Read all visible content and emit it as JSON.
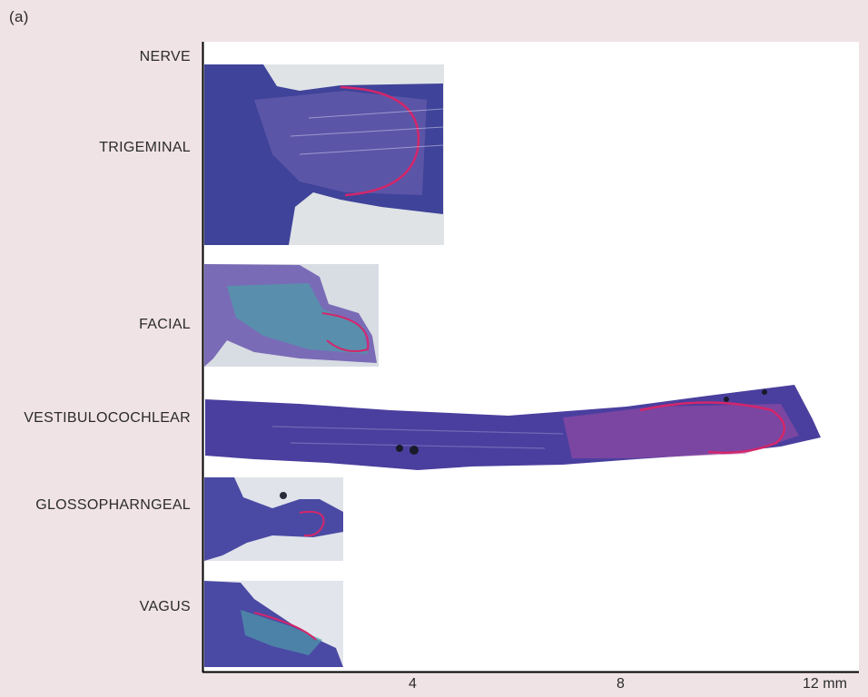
{
  "panel_label": "(a)",
  "column_header": "NERVE",
  "nerves": [
    {
      "name": "TRIGEMINAL"
    },
    {
      "name": "FACIAL"
    },
    {
      "name": "VESTIBULOCOCHLEAR"
    },
    {
      "name": "GLOSSOPHARNGEAL"
    },
    {
      "name": "VAGUS"
    }
  ],
  "axis": {
    "ticks": [
      "4",
      "8",
      "12 mm"
    ]
  },
  "colors": {
    "background": "#f0e3e6",
    "plot_area": "#ffffff",
    "stain_dark": "#3b3f9a",
    "stain_mid": "#6a5fb0",
    "stain_teal": "#4f9aaa",
    "outline_accent": "#d4266a"
  }
}
